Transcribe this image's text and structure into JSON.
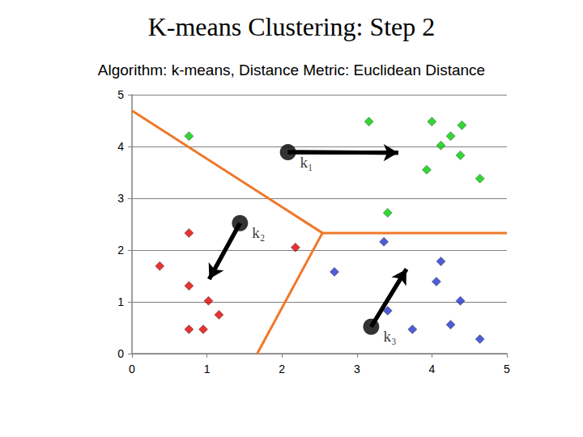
{
  "chart_data": {
    "type": "scatter",
    "title": "K-means Clustering: Step 2",
    "subtitle": "Algorithm: k-means, Distance Metric: Euclidean Distance",
    "xlim": [
      0,
      5
    ],
    "xticks": [
      0,
      1,
      2,
      3,
      4,
      5
    ],
    "ylim": [
      0,
      5
    ],
    "yticks": [
      0,
      1,
      2,
      3,
      4,
      5
    ],
    "grid": true,
    "series": [
      {
        "type": "line",
        "color": "#f0772a",
        "line_style": "solid",
        "x": [
          0,
          2.54,
          5
        ],
        "y": [
          4.69,
          2.33,
          2.33
        ]
      },
      {
        "type": "line",
        "color": "#f0772a",
        "line_style": "solid",
        "x": [
          2.54,
          1.67
        ],
        "y": [
          2.33,
          0
        ]
      },
      {
        "type": "scatter",
        "color": "#00cc00",
        "marker": "diamond",
        "x": [
          0.76,
          3.16,
          4.0,
          4.25,
          4.4,
          4.12,
          4.38,
          3.93,
          4.64,
          3.41
        ],
        "y": [
          4.2,
          4.48,
          4.48,
          4.2,
          4.41,
          4.02,
          3.83,
          3.55,
          3.38,
          2.72
        ]
      },
      {
        "type": "scatter",
        "color": "#e00000",
        "marker": "diamond",
        "x": [
          0.76,
          0.37,
          0.76,
          1.02,
          1.16,
          0.76,
          0.95,
          2.18
        ],
        "y": [
          2.33,
          1.69,
          1.31,
          1.02,
          0.75,
          0.47,
          0.47,
          2.05
        ]
      },
      {
        "type": "scatter",
        "color": "#2233cc",
        "marker": "diamond",
        "x": [
          3.36,
          2.7,
          4.12,
          4.06,
          4.38,
          3.41,
          3.74,
          4.25,
          4.64
        ],
        "y": [
          2.16,
          1.58,
          1.78,
          1.39,
          1.02,
          0.83,
          0.47,
          0.56,
          0.28
        ]
      },
      {
        "type": "line",
        "color": "#000000",
        "line_style": "arrow",
        "x": [
          2.08,
          3.55
        ],
        "y": [
          3.89,
          3.88
        ]
      },
      {
        "type": "line",
        "color": "#000000",
        "line_style": "arrow",
        "x": [
          1.44,
          1.03
        ],
        "y": [
          2.52,
          1.44
        ]
      },
      {
        "type": "line",
        "color": "#000000",
        "line_style": "arrow",
        "x": [
          3.19,
          3.66
        ],
        "y": [
          0.52,
          1.63
        ]
      },
      {
        "type": "scatter",
        "color": "#000000",
        "marker": "circle",
        "x": [
          2.08,
          1.44,
          3.19
        ],
        "y": [
          3.89,
          2.52,
          0.52
        ],
        "labels": [
          "k₁",
          "k₂",
          "k₃"
        ]
      }
    ]
  }
}
